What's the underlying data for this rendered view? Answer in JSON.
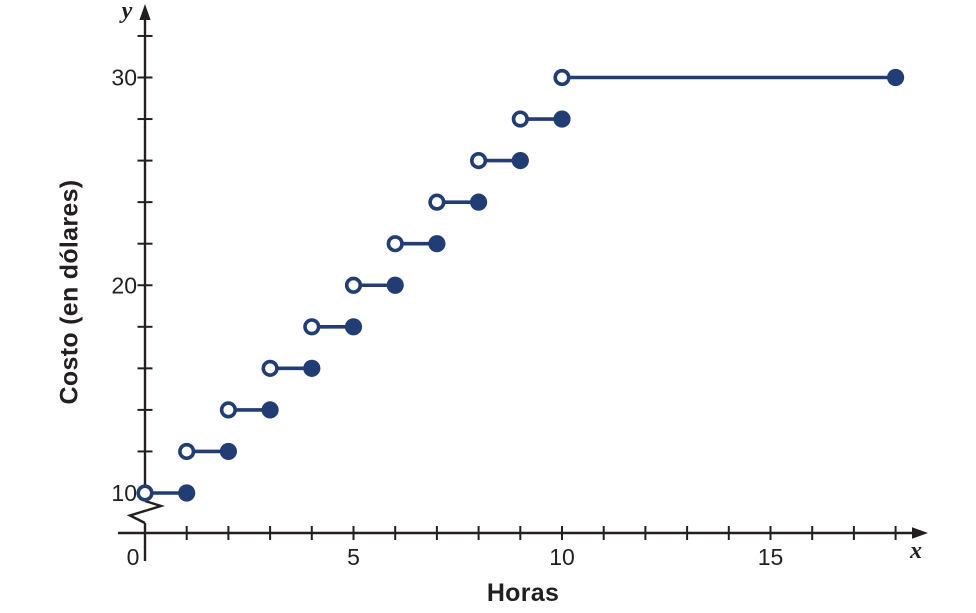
{
  "chart_data": {
    "type": "line",
    "subtype": "step-function-intervals",
    "title": "",
    "xlabel": "Horas",
    "ylabel": "Costo (en dólares)",
    "x_axis_letter": "x",
    "y_axis_letter": "y",
    "xlim": [
      0,
      18.6
    ],
    "ylim": [
      10,
      32
    ],
    "grid": false,
    "legend": false,
    "y_axis_break": true,
    "x_ticks": [
      1,
      2,
      3,
      4,
      5,
      6,
      7,
      8,
      9,
      10,
      11,
      12,
      13,
      14,
      15,
      16,
      17,
      18
    ],
    "x_tick_labels": [
      {
        "value": 0,
        "label": "0"
      },
      {
        "value": 5,
        "label": "5"
      },
      {
        "value": 10,
        "label": "10"
      },
      {
        "value": 15,
        "label": "15"
      }
    ],
    "y_ticks": [
      12,
      14,
      16,
      18,
      20,
      22,
      24,
      26,
      28,
      30,
      32
    ],
    "y_tick_labels": [
      {
        "value": 10,
        "label": "10"
      },
      {
        "value": 20,
        "label": "20"
      },
      {
        "value": 30,
        "label": "30"
      }
    ],
    "segments": [
      {
        "x_start": 0,
        "x_end": 1,
        "y": 10,
        "left_endpoint": "open",
        "right_endpoint": "closed"
      },
      {
        "x_start": 1,
        "x_end": 2,
        "y": 12,
        "left_endpoint": "open",
        "right_endpoint": "closed"
      },
      {
        "x_start": 2,
        "x_end": 3,
        "y": 14,
        "left_endpoint": "open",
        "right_endpoint": "closed"
      },
      {
        "x_start": 3,
        "x_end": 4,
        "y": 16,
        "left_endpoint": "open",
        "right_endpoint": "closed"
      },
      {
        "x_start": 4,
        "x_end": 5,
        "y": 18,
        "left_endpoint": "open",
        "right_endpoint": "closed"
      },
      {
        "x_start": 5,
        "x_end": 6,
        "y": 20,
        "left_endpoint": "open",
        "right_endpoint": "closed"
      },
      {
        "x_start": 6,
        "x_end": 7,
        "y": 22,
        "left_endpoint": "open",
        "right_endpoint": "closed"
      },
      {
        "x_start": 7,
        "x_end": 8,
        "y": 24,
        "left_endpoint": "open",
        "right_endpoint": "closed"
      },
      {
        "x_start": 8,
        "x_end": 9,
        "y": 26,
        "left_endpoint": "open",
        "right_endpoint": "closed"
      },
      {
        "x_start": 9,
        "x_end": 10,
        "y": 28,
        "left_endpoint": "open",
        "right_endpoint": "closed"
      },
      {
        "x_start": 10,
        "x_end": 18,
        "y": 30,
        "left_endpoint": "open",
        "right_endpoint": "closed"
      }
    ],
    "colors": {
      "series": "#223d73",
      "axis": "#231f20",
      "text": "#231f20",
      "background": "#ffffff"
    }
  }
}
